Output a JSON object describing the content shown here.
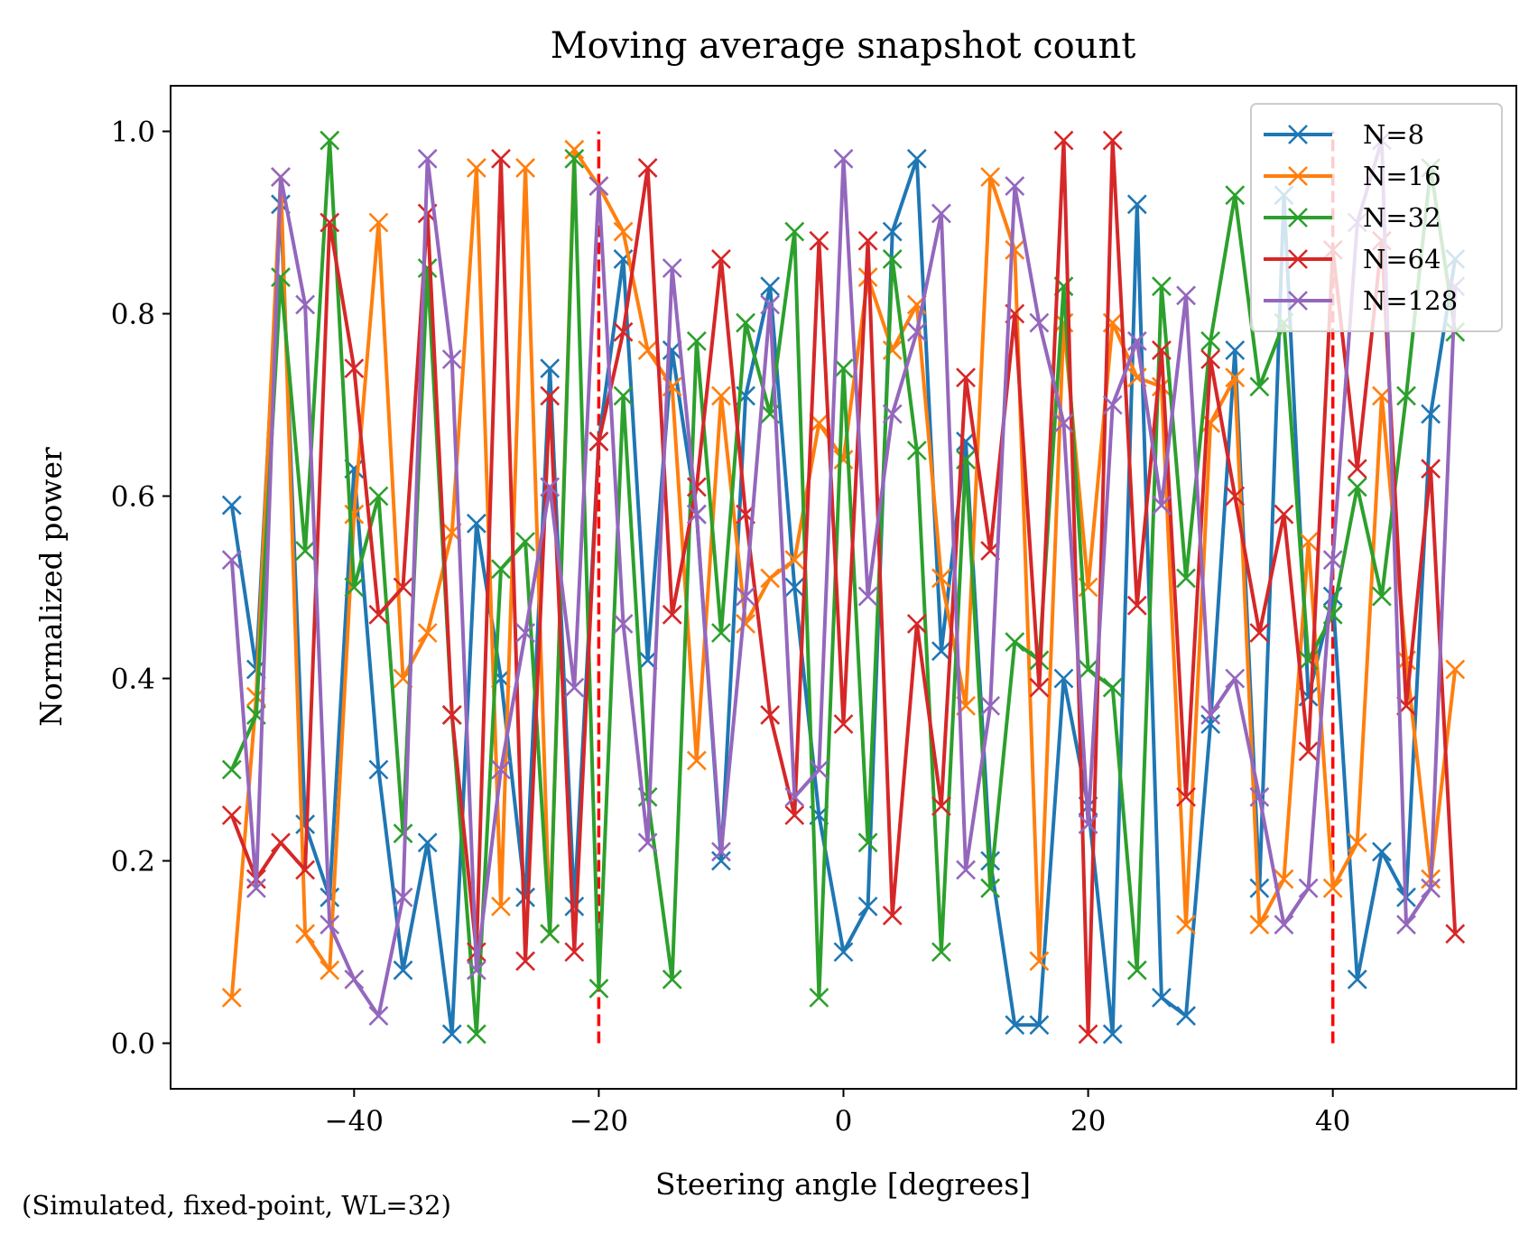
{
  "chart_data": {
    "type": "line",
    "title": "Moving average snapshot count",
    "xlabel": "Steering angle [degrees]",
    "ylabel": "Normalized power",
    "footnote": "(Simulated, fixed-point, WL=32)",
    "xlim": [
      -55,
      55
    ],
    "ylim": [
      -0.05,
      1.05
    ],
    "xticks": [
      -40,
      -20,
      0,
      20,
      40
    ],
    "xtick_labels": [
      "−40",
      "−20",
      "0",
      "20",
      "40"
    ],
    "yticks": [
      0.0,
      0.2,
      0.4,
      0.6,
      0.8,
      1.0
    ],
    "ytick_labels": [
      "0.0",
      "0.2",
      "0.4",
      "0.6",
      "0.8",
      "1.0"
    ],
    "grid": false,
    "legend_position": "top-right",
    "marker": "x",
    "x": [
      -50,
      -48,
      -46,
      -44,
      -42,
      -40,
      -38,
      -36,
      -34,
      -32,
      -30,
      -28,
      -26,
      -24,
      -22,
      -20,
      -18,
      -16,
      -14,
      -12,
      -10,
      -8,
      -6,
      -4,
      -2,
      0,
      2,
      4,
      6,
      8,
      10,
      12,
      14,
      16,
      18,
      20,
      22,
      24,
      26,
      28,
      30,
      32,
      34,
      36,
      38,
      40,
      42,
      44,
      46,
      48,
      50
    ],
    "vlines": [
      {
        "x": -20,
        "ymin": 0.0,
        "ymax": 1.0,
        "color": "#ff0000",
        "style": "dashed"
      },
      {
        "x": 40,
        "ymin": 0.0,
        "ymax": 1.0,
        "color": "#ff0000",
        "style": "dashed"
      }
    ],
    "series": [
      {
        "name": "N=8",
        "color": "#1f77b4",
        "values": [
          0.59,
          0.41,
          0.92,
          0.24,
          0.16,
          0.63,
          0.3,
          0.08,
          0.22,
          0.01,
          0.57,
          0.4,
          0.16,
          0.74,
          0.15,
          0.66,
          0.86,
          0.42,
          0.76,
          0.58,
          0.2,
          0.71,
          0.83,
          0.5,
          0.25,
          0.1,
          0.15,
          0.89,
          0.97,
          0.43,
          0.66,
          0.2,
          0.02,
          0.02,
          0.4,
          0.26,
          0.01,
          0.92,
          0.05,
          0.03,
          0.35,
          0.76,
          0.17,
          0.93,
          0.38,
          0.49,
          0.07,
          0.21,
          0.16,
          0.69,
          0.86
        ]
      },
      {
        "name": "N=16",
        "color": "#ff7f0e",
        "values": [
          0.05,
          0.38,
          0.95,
          0.12,
          0.08,
          0.58,
          0.9,
          0.4,
          0.45,
          0.56,
          0.96,
          0.15,
          0.96,
          0.12,
          0.98,
          0.94,
          0.89,
          0.76,
          0.72,
          0.31,
          0.71,
          0.46,
          0.51,
          0.53,
          0.68,
          0.64,
          0.84,
          0.76,
          0.81,
          0.51,
          0.37,
          0.95,
          0.87,
          0.09,
          0.79,
          0.5,
          0.79,
          0.73,
          0.72,
          0.13,
          0.68,
          0.73,
          0.13,
          0.18,
          0.55,
          0.17,
          0.22,
          0.71,
          0.42,
          0.18,
          0.41
        ]
      },
      {
        "name": "N=32",
        "color": "#2ca02c",
        "values": [
          0.3,
          0.36,
          0.84,
          0.54,
          0.99,
          0.5,
          0.6,
          0.23,
          0.85,
          0.36,
          0.01,
          0.52,
          0.55,
          0.12,
          0.97,
          0.06,
          0.71,
          0.27,
          0.07,
          0.77,
          0.45,
          0.79,
          0.69,
          0.89,
          0.05,
          0.74,
          0.22,
          0.86,
          0.65,
          0.1,
          0.64,
          0.17,
          0.44,
          0.42,
          0.83,
          0.41,
          0.39,
          0.08,
          0.83,
          0.51,
          0.77,
          0.93,
          0.72,
          0.79,
          0.42,
          0.47,
          0.61,
          0.49,
          0.71,
          0.96,
          0.78
        ]
      },
      {
        "name": "N=64",
        "color": "#d62728",
        "values": [
          0.25,
          0.18,
          0.22,
          0.19,
          0.9,
          0.74,
          0.47,
          0.5,
          0.91,
          0.36,
          0.1,
          0.97,
          0.09,
          0.71,
          0.1,
          0.66,
          0.78,
          0.96,
          0.47,
          0.61,
          0.86,
          0.58,
          0.36,
          0.25,
          0.88,
          0.35,
          0.88,
          0.14,
          0.46,
          0.26,
          0.73,
          0.54,
          0.8,
          0.39,
          0.99,
          0.01,
          0.99,
          0.48,
          0.76,
          0.27,
          0.75,
          0.6,
          0.45,
          0.58,
          0.32,
          0.87,
          0.63,
          0.88,
          0.37,
          0.63,
          0.12
        ]
      },
      {
        "name": "N=128",
        "color": "#9467bd",
        "values": [
          0.53,
          0.17,
          0.95,
          0.81,
          0.13,
          0.07,
          0.03,
          0.16,
          0.97,
          0.75,
          0.08,
          0.3,
          0.45,
          0.61,
          0.39,
          0.94,
          0.46,
          0.22,
          0.85,
          0.58,
          0.21,
          0.49,
          0.81,
          0.27,
          0.3,
          0.97,
          0.49,
          0.69,
          0.78,
          0.91,
          0.19,
          0.37,
          0.94,
          0.79,
          0.68,
          0.24,
          0.7,
          0.77,
          0.59,
          0.82,
          0.36,
          0.4,
          0.27,
          0.13,
          0.17,
          0.53,
          0.9,
          0.99,
          0.13,
          0.17,
          0.83
        ]
      }
    ]
  }
}
